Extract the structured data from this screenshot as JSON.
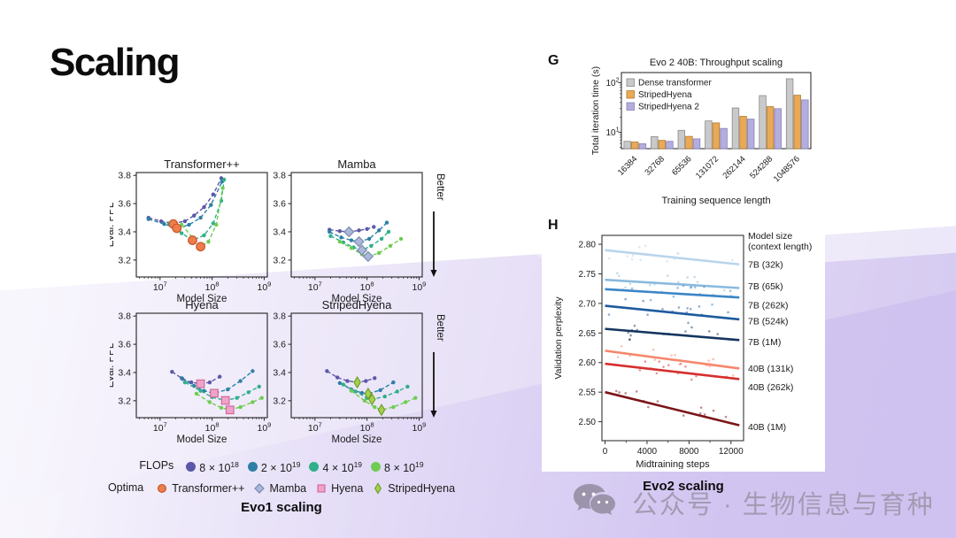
{
  "slide": {
    "title": "Scaling"
  },
  "evo1": {
    "caption": "Evo1 scaling",
    "better_label": "Better",
    "legend": {
      "flops_label": "FLOPs",
      "optima_label": "Optima",
      "flops": [
        {
          "base": "8 × 10",
          "exp": "18",
          "color": "#5b58a8"
        },
        {
          "base": "2 × 10",
          "exp": "19",
          "color": "#2e7fa6"
        },
        {
          "base": "4 × 10",
          "exp": "19",
          "color": "#2fb08a"
        },
        {
          "base": "8 × 10",
          "exp": "19",
          "color": "#6ecc52"
        }
      ],
      "optima": [
        {
          "label": "Transformer++",
          "marker": "circle",
          "fill": "#ee7d4e",
          "stroke": "#c7562b"
        },
        {
          "label": "Mamba",
          "marker": "diamond",
          "fill": "#a9b7da",
          "stroke": "#7d8bb0"
        },
        {
          "label": "Hyena",
          "marker": "square",
          "fill": "#f0a3c8",
          "stroke": "#d06a9e"
        },
        {
          "label": "StripedHyena",
          "marker": "thin-diamond",
          "fill": "#a7d14b",
          "stroke": "#6f9e2e"
        }
      ]
    }
  },
  "evo2": {
    "caption": "Evo2 scaling",
    "g_label": "G",
    "h_label": "H"
  },
  "watermark": {
    "text": "公众号 · 生物信息与育种"
  },
  "chart_data": [
    {
      "id": "transformerpp",
      "type": "scatter",
      "title": "Transformer++",
      "xlabel": "Model Size",
      "ylabel": "Eval. PPL",
      "show_ylabel": true,
      "better_arrow": false,
      "xscale": "log",
      "xlim": [
        3500000,
        1150000000
      ],
      "ylim": [
        3.08,
        3.82
      ],
      "yticks": [
        3.2,
        3.4,
        3.6,
        3.8
      ],
      "xtick_exponents": [
        7,
        8,
        9
      ],
      "series": [
        {
          "name": "8e18 FLOPs",
          "color": "#5b58a8",
          "x": [
            6000000,
            10500000,
            18000000,
            30000000,
            45000000,
            70000000,
            105000000,
            150000000
          ],
          "y": [
            3.5,
            3.475,
            3.46,
            3.475,
            3.515,
            3.575,
            3.665,
            3.78
          ]
        },
        {
          "name": "2e19 FLOPs",
          "color": "#2e7fa6",
          "x": [
            6000000,
            12000000,
            21000000,
            36000000,
            60000000,
            95000000,
            155000000
          ],
          "y": [
            3.49,
            3.455,
            3.425,
            3.45,
            3.5,
            3.59,
            3.755
          ]
        },
        {
          "name": "4e19 FLOPs",
          "color": "#2fb08a",
          "x": [
            15000000,
            26000000,
            42000000,
            70000000,
            105000000,
            150000000,
            170000000
          ],
          "y": [
            3.46,
            3.39,
            3.34,
            3.375,
            3.46,
            3.62,
            3.77
          ]
        },
        {
          "name": "8e19 FLOPs",
          "color": "#6ecc52",
          "x": [
            26000000,
            42000000,
            60000000,
            85000000,
            120000000,
            160000000
          ],
          "y": [
            3.45,
            3.36,
            3.295,
            3.33,
            3.45,
            3.71
          ]
        }
      ],
      "optima": {
        "marker": "circle",
        "fill": "#ee7d4e",
        "stroke": "#c7562b",
        "points": [
          [
            18000000,
            3.455
          ],
          [
            21000000,
            3.425
          ],
          [
            42000000,
            3.34
          ],
          [
            60000000,
            3.295
          ]
        ]
      }
    },
    {
      "id": "mamba",
      "type": "scatter",
      "title": "Mamba",
      "xlabel": "Model Size",
      "ylabel": "Eval. PPL",
      "show_ylabel": false,
      "better_arrow": true,
      "xscale": "log",
      "xlim": [
        3500000,
        1150000000
      ],
      "ylim": [
        3.08,
        3.82
      ],
      "yticks": [
        3.2,
        3.4,
        3.6,
        3.8
      ],
      "xtick_exponents": [
        7,
        8,
        9
      ],
      "series": [
        {
          "name": "8e18 FLOPs",
          "color": "#5b58a8",
          "x": [
            19000000,
            30000000,
            45000000,
            70000000,
            100000000,
            135000000
          ],
          "y": [
            3.415,
            3.405,
            3.4,
            3.41,
            3.42,
            3.435
          ]
        },
        {
          "name": "2e19 FLOPs",
          "color": "#2e7fa6",
          "x": [
            19000000,
            32000000,
            50000000,
            70000000,
            110000000,
            170000000,
            240000000
          ],
          "y": [
            3.4,
            3.36,
            3.34,
            3.33,
            3.35,
            3.41,
            3.465
          ]
        },
        {
          "name": "4e19 FLOPs",
          "color": "#2fb08a",
          "x": [
            20000000,
            35000000,
            55000000,
            80000000,
            120000000,
            190000000,
            260000000
          ],
          "y": [
            3.37,
            3.325,
            3.29,
            3.27,
            3.3,
            3.35,
            3.4
          ]
        },
        {
          "name": "8e19 FLOPs",
          "color": "#6ecc52",
          "x": [
            30000000,
            50000000,
            80000000,
            105000000,
            170000000,
            280000000,
            450000000
          ],
          "y": [
            3.33,
            3.285,
            3.24,
            3.225,
            3.25,
            3.3,
            3.35
          ]
        }
      ],
      "optima": {
        "marker": "diamond",
        "fill": "#a9b7da",
        "stroke": "#7d8bb0",
        "points": [
          [
            45000000,
            3.4
          ],
          [
            70000000,
            3.33
          ],
          [
            80000000,
            3.27
          ],
          [
            105000000,
            3.225
          ]
        ]
      }
    },
    {
      "id": "hyena",
      "type": "scatter",
      "title": "Hyena",
      "xlabel": "Model Size",
      "ylabel": "Eval. PPL",
      "show_ylabel": true,
      "better_arrow": false,
      "xscale": "log",
      "xlim": [
        3500000,
        1150000000
      ],
      "ylim": [
        3.08,
        3.82
      ],
      "yticks": [
        3.2,
        3.4,
        3.6,
        3.8
      ],
      "xtick_exponents": [
        7,
        8,
        9
      ],
      "series": [
        {
          "name": "8e18 FLOPs",
          "color": "#5b58a8",
          "x": [
            17000000,
            27000000,
            40000000,
            60000000,
            90000000,
            140000000
          ],
          "y": [
            3.405,
            3.355,
            3.33,
            3.32,
            3.33,
            3.37
          ]
        },
        {
          "name": "2e19 FLOPs",
          "color": "#2e7fa6",
          "x": [
            26000000,
            45000000,
            70000000,
            110000000,
            200000000,
            350000000,
            600000000
          ],
          "y": [
            3.36,
            3.305,
            3.27,
            3.253,
            3.28,
            3.34,
            3.41
          ]
        },
        {
          "name": "4e19 FLOPs",
          "color": "#2fb08a",
          "x": [
            30000000,
            60000000,
            100000000,
            180000000,
            300000000,
            500000000,
            800000000
          ],
          "y": [
            3.33,
            3.27,
            3.225,
            3.202,
            3.22,
            3.26,
            3.3
          ]
        },
        {
          "name": "8e19 FLOPs",
          "color": "#6ecc52",
          "x": [
            50000000,
            90000000,
            150000000,
            220000000,
            350000000,
            600000000,
            900000000
          ],
          "y": [
            3.25,
            3.19,
            3.15,
            3.135,
            3.155,
            3.19,
            3.22
          ]
        }
      ],
      "optima": {
        "marker": "square",
        "fill": "#f0a3c8",
        "stroke": "#d06a9e",
        "points": [
          [
            60000000,
            3.32
          ],
          [
            110000000,
            3.253
          ],
          [
            180000000,
            3.202
          ],
          [
            220000000,
            3.135
          ]
        ]
      }
    },
    {
      "id": "stripedhyena",
      "type": "scatter",
      "title": "StripedHyena",
      "xlabel": "Model Size",
      "ylabel": "Eval. PPL",
      "show_ylabel": false,
      "better_arrow": true,
      "xscale": "log",
      "xlim": [
        3500000,
        1150000000
      ],
      "ylim": [
        3.08,
        3.82
      ],
      "yticks": [
        3.2,
        3.4,
        3.6,
        3.8
      ],
      "xtick_exponents": [
        7,
        8,
        9
      ],
      "series": [
        {
          "name": "8e18 FLOPs",
          "color": "#5b58a8",
          "x": [
            17000000,
            27000000,
            42000000,
            65000000,
            95000000,
            140000000
          ],
          "y": [
            3.41,
            3.365,
            3.34,
            3.33,
            3.34,
            3.36
          ]
        },
        {
          "name": "2e19 FLOPs",
          "color": "#2e7fa6",
          "x": [
            30000000,
            50000000,
            80000000,
            105000000,
            180000000,
            320000000
          ],
          "y": [
            3.325,
            3.28,
            3.255,
            3.25,
            3.275,
            3.33
          ]
        },
        {
          "name": "4e19 FLOPs",
          "color": "#2fb08a",
          "x": [
            35000000,
            60000000,
            100000000,
            125000000,
            220000000,
            380000000,
            600000000
          ],
          "y": [
            3.315,
            3.265,
            3.22,
            3.21,
            3.23,
            3.265,
            3.3
          ]
        },
        {
          "name": "8e19 FLOPs",
          "color": "#6ecc52",
          "x": [
            50000000,
            90000000,
            140000000,
            190000000,
            320000000,
            550000000,
            850000000
          ],
          "y": [
            3.27,
            3.2,
            3.155,
            3.135,
            3.155,
            3.19,
            3.22
          ]
        }
      ],
      "optima": {
        "marker": "thin-diamond",
        "fill": "#a7d14b",
        "stroke": "#6f9e2e",
        "points": [
          [
            65000000,
            3.33
          ],
          [
            105000000,
            3.25
          ],
          [
            125000000,
            3.21
          ],
          [
            190000000,
            3.135
          ]
        ]
      }
    },
    {
      "id": "throughput",
      "type": "bar",
      "title": "Evo 2 40B: Throughput scaling",
      "xlabel": "Training sequence length",
      "ylabel": "Total iteration time (s)",
      "yscale": "log",
      "ylim": [
        4.7,
        160
      ],
      "ytick_exponents": [
        1,
        2
      ],
      "categories": [
        "16384",
        "32768",
        "65536",
        "131072",
        "262144",
        "524288",
        "1048576"
      ],
      "series": [
        {
          "name": "Dense transformer",
          "fill": "#c9c9cb",
          "stroke": "#8a8a8a",
          "values": [
            6.6,
            8.2,
            11,
            17,
            31,
            55,
            120
          ]
        },
        {
          "name": "StripedHyena",
          "fill": "#e9a957",
          "stroke": "#b07c30",
          "values": [
            6.4,
            6.9,
            8.3,
            15.5,
            21,
            33,
            56
          ]
        },
        {
          "name": "StripedHyena 2",
          "fill": "#b3aede",
          "stroke": "#8680b8",
          "values": [
            5.9,
            6.6,
            7.4,
            12,
            18.5,
            30,
            45
          ]
        }
      ]
    },
    {
      "id": "midtraining",
      "type": "line",
      "title": "",
      "xlabel": "Midtraining steps",
      "ylabel": "Validation perplexity",
      "legend_title_line1": "Model size",
      "legend_title_line2": "(context length)",
      "xlim": [
        -300,
        13200
      ],
      "ylim": [
        2.468,
        2.815
      ],
      "yticks": [
        2.5,
        2.55,
        2.6,
        2.65,
        2.7,
        2.75,
        2.8
      ],
      "xticks": [
        0,
        4000,
        8000,
        12000
      ],
      "x_minor_ticks": [
        2000,
        6000,
        10000
      ],
      "x_line_end": 12800,
      "series": [
        {
          "name": "7B (32k)",
          "color": "#b9d5ec",
          "y_start": 2.79,
          "y_end": 2.766,
          "label_dy": 0
        },
        {
          "name": "7B (65k)",
          "color": "#8abade",
          "y_start": 2.74,
          "y_end": 2.726,
          "label_dy": -2
        },
        {
          "name": "7B (262k)",
          "color": "#3a85c6",
          "y_start": 2.724,
          "y_end": 2.71,
          "label_dy": 9
        },
        {
          "name": "7B (524k)",
          "color": "#1d5a9e",
          "y_start": 2.696,
          "y_end": 2.673,
          "label_dy": 2
        },
        {
          "name": "7B (1M)",
          "color": "#14365f",
          "y_start": 2.657,
          "y_end": 2.638,
          "label_dy": 2
        },
        {
          "name": "40B (131k)",
          "color": "#f6876c",
          "y_start": 2.62,
          "y_end": 2.59,
          "label_dy": 0
        },
        {
          "name": "40B (262k)",
          "color": "#d62f2f",
          "y_start": 2.598,
          "y_end": 2.572,
          "label_dy": 9
        },
        {
          "name": "40B (1M)",
          "color": "#7c1518",
          "y_start": 2.55,
          "y_end": 2.494,
          "label_dy": 2
        }
      ]
    }
  ]
}
